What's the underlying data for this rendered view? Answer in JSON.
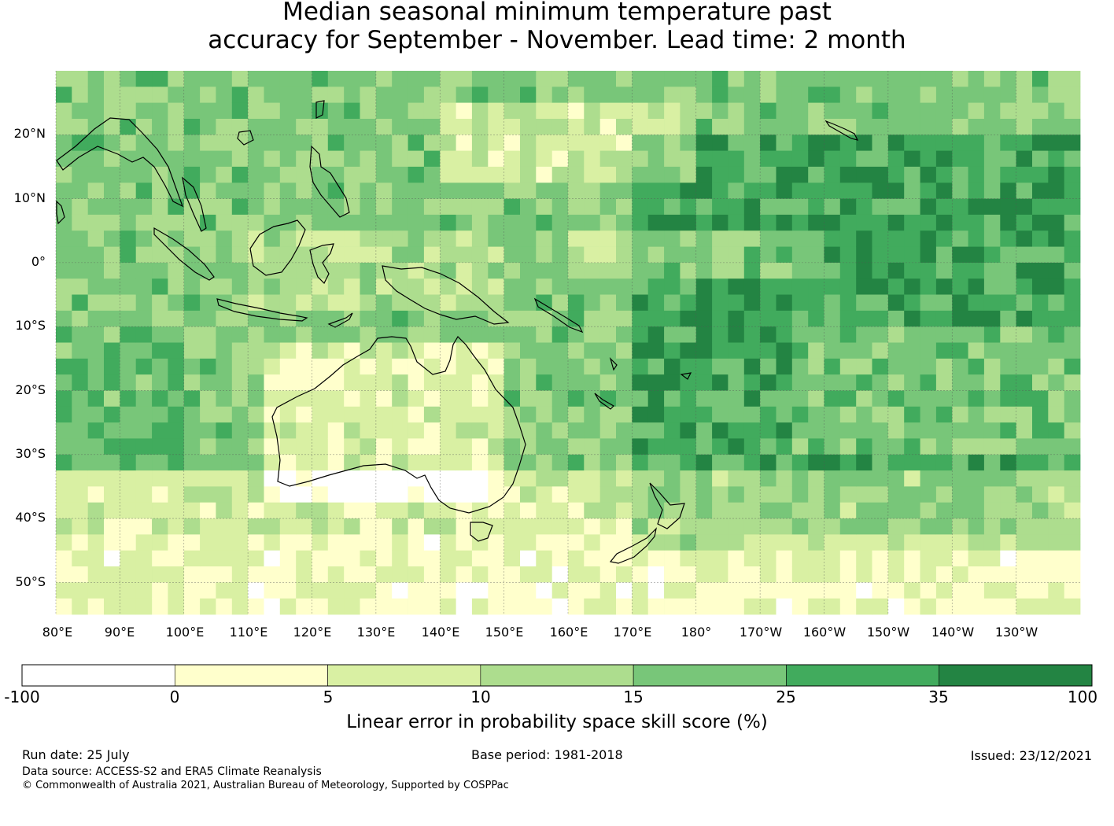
{
  "title": {
    "line1": "Median seasonal minimum temperature past",
    "line2": "accuracy for September - November. Lead time: 2 month"
  },
  "map": {
    "lat_labels": [
      "20°N",
      "10°N",
      "0°",
      "10°S",
      "20°S",
      "30°S",
      "40°S",
      "50°S"
    ],
    "lon_labels": [
      "80°E",
      "90°E",
      "100°E",
      "110°E",
      "120°E",
      "130°E",
      "140°E",
      "150°E",
      "160°E",
      "170°E",
      "180°",
      "170°W",
      "160°W",
      "150°W",
      "140°W",
      "130°W"
    ],
    "lon_range": [
      80,
      240
    ],
    "lat_range": [
      -55,
      30
    ],
    "gridlines": true
  },
  "colorbar": {
    "title": "Linear error in probability space skill score (%)",
    "ticks": [
      "-100",
      "0",
      "5",
      "10",
      "15",
      "25",
      "35",
      "100"
    ],
    "bins": [
      {
        "from": -100,
        "to": 0,
        "color": "#ffffff"
      },
      {
        "from": 0,
        "to": 5,
        "color": "#ffffcc"
      },
      {
        "from": 5,
        "to": 10,
        "color": "#d9f0a3"
      },
      {
        "from": 10,
        "to": 15,
        "color": "#addd8e"
      },
      {
        "from": 15,
        "to": 25,
        "color": "#78c679"
      },
      {
        "from": 25,
        "to": 35,
        "color": "#41ab5d"
      },
      {
        "from": 35,
        "to": 100,
        "color": "#238443"
      }
    ]
  },
  "footer": {
    "run_date": "Run date: 25 July",
    "base_period": "Base period: 1981-2018",
    "issued": "Issued: 23/12/2021",
    "data_source": "Data source: ACCESS-S2 and ERA5 Climate Reanalysis",
    "copyright": "© Commonwealth of Australia 2021, Australian Bureau of Meteorology, Supported by COSPPac"
  }
}
